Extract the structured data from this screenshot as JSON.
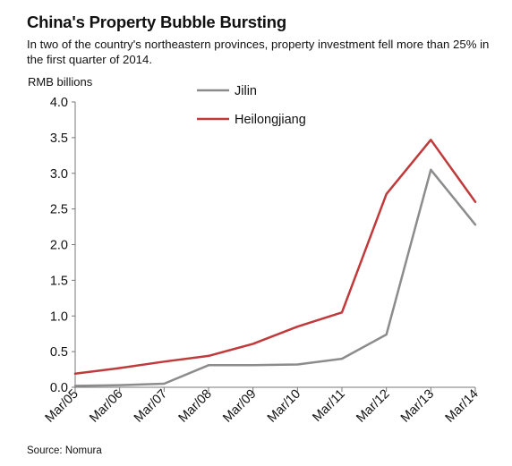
{
  "title": "China's Property Bubble Bursting",
  "subtitle": "In two of the country's northeastern provinces, property investment fell more than 25% in the first quarter of 2014.",
  "source": "Source: Nomura",
  "chart_data": {
    "type": "line",
    "title": "China's Property Bubble Bursting",
    "subtitle": "In two of the country's northeastern provinces, property investment fell more than 25% in the first quarter of 2014.",
    "ylabel": "RMB billions",
    "xlabel": "",
    "categories": [
      "Mar/05",
      "Mar/06",
      "Mar/07",
      "Mar/08",
      "Mar/09",
      "Mar/10",
      "Mar/11",
      "Mar/12",
      "Mar/13",
      "Mar/14"
    ],
    "yticks": [
      "0.0",
      "0.5",
      "1.0",
      "1.5",
      "2.0",
      "2.5",
      "3.0",
      "3.5",
      "4.0"
    ],
    "ylim": [
      0,
      4
    ],
    "grid": false,
    "legend_position": "top-left",
    "series": [
      {
        "name": "Jilin",
        "color": "#8c8c8c",
        "values": [
          0.02,
          0.03,
          0.05,
          0.31,
          0.31,
          0.32,
          0.4,
          0.74,
          3.05,
          2.28
        ]
      },
      {
        "name": "Heilongjiang",
        "color": "#c0393b",
        "values": [
          0.19,
          0.27,
          0.36,
          0.44,
          0.61,
          0.85,
          1.05,
          2.71,
          3.47,
          2.6
        ]
      }
    ]
  }
}
